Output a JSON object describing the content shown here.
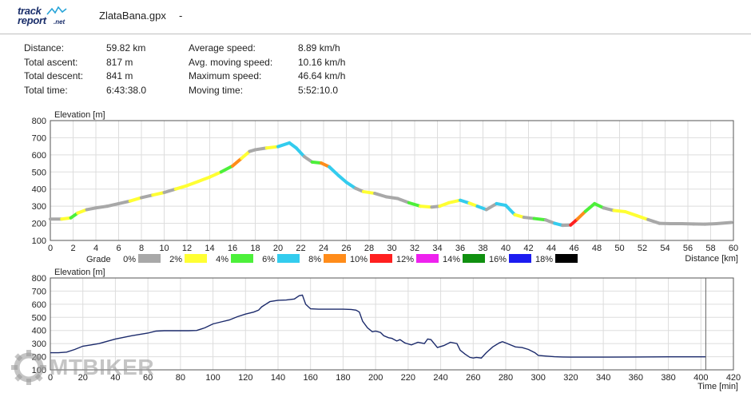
{
  "header": {
    "logo_line1": "track",
    "logo_line2": "report",
    "logo_suffix": ".net",
    "file_name": "ZlataBana.gpx",
    "dash": "-"
  },
  "stats": {
    "labels_left": [
      "Distance:",
      "Total ascent:",
      "Total descent:",
      "Total time:"
    ],
    "values_left": [
      "59.82 km",
      "817 m",
      "841 m",
      "6:43:38.0"
    ],
    "labels_right": [
      "Average speed:",
      "Avg. moving speed:",
      "Maximum speed:",
      "Moving time:"
    ],
    "values_right": [
      "8.89 km/h",
      "10.16 km/h",
      "46.64 km/h",
      "5:52:10.0"
    ]
  },
  "watermark": {
    "text": "MTBIKER"
  },
  "chart_data": [
    {
      "type": "line",
      "ylabel": "Elevation [m]",
      "xlabel": "Distance [km]",
      "xlim": [
        0,
        60
      ],
      "ylim": [
        100,
        800
      ],
      "xticks": [
        0,
        2,
        4,
        6,
        8,
        10,
        12,
        14,
        16,
        18,
        20,
        22,
        24,
        26,
        28,
        30,
        32,
        34,
        36,
        38,
        40,
        42,
        44,
        46,
        48,
        50,
        52,
        54,
        56,
        58,
        60
      ],
      "yticks": [
        100,
        200,
        300,
        400,
        500,
        600,
        700,
        800
      ],
      "grid": true,
      "legend": {
        "title": "Grade",
        "placement": "bottom",
        "items": [
          {
            "label": "0%",
            "color": "#a8a8a8"
          },
          {
            "label": "2%",
            "color": "#ffff33"
          },
          {
            "label": "4%",
            "color": "#4cf03a"
          },
          {
            "label": "6%",
            "color": "#33ccee"
          },
          {
            "label": "8%",
            "color": "#ff8c1a"
          },
          {
            "label": "10%",
            "color": "#ff2020"
          },
          {
            "label": "12%",
            "color": "#ee22ee"
          },
          {
            "label": "14%",
            "color": "#109010"
          },
          {
            "label": "16%",
            "color": "#1c1cf0"
          },
          {
            "label": "18%",
            "color": "#000000"
          }
        ]
      },
      "x": [
        0,
        1,
        1.8,
        2.4,
        3.2,
        4,
        5,
        6,
        7,
        8,
        9,
        10,
        11,
        12,
        13,
        14,
        15,
        16,
        16.8,
        17.5,
        18,
        19,
        20,
        21,
        21.6,
        22.3,
        23,
        23.8,
        24.5,
        25.3,
        26,
        26.8,
        27.5,
        28.5,
        29.5,
        30.5,
        31.5,
        32.5,
        33.5,
        34.2,
        35,
        36,
        36.8,
        37.5,
        38.3,
        39.2,
        40,
        40.8,
        41.6,
        42.5,
        43.5,
        44.3,
        45,
        45.7,
        46.3,
        47,
        47.8,
        48.6,
        49.5,
        50.5,
        51.5,
        52.5,
        53.5,
        54.5,
        55.5,
        56.5,
        57.5,
        58.5,
        59.82
      ],
      "y": [
        225,
        225,
        232,
        260,
        280,
        290,
        300,
        315,
        330,
        350,
        365,
        380,
        400,
        420,
        445,
        470,
        500,
        535,
        580,
        620,
        630,
        640,
        648,
        670,
        640,
        590,
        558,
        552,
        530,
        480,
        440,
        405,
        385,
        375,
        355,
        345,
        320,
        300,
        295,
        300,
        320,
        335,
        318,
        300,
        280,
        315,
        305,
        250,
        235,
        228,
        220,
        200,
        188,
        190,
        225,
        270,
        315,
        290,
        275,
        268,
        245,
        222,
        200,
        198,
        198,
        196,
        195,
        198,
        205
      ],
      "segment_grades": [
        "0%",
        "2%",
        "4%",
        "2%",
        "0%",
        "0%",
        "0%",
        "0%",
        "2%",
        "0%",
        "2%",
        "0%",
        "2%",
        "2%",
        "2%",
        "2%",
        "4%",
        "8%",
        "2%",
        "0%",
        "0%",
        "2%",
        "6%",
        "6%",
        "6%",
        "0%",
        "4%",
        "8%",
        "6%",
        "6%",
        "6%",
        "0%",
        "2%",
        "0%",
        "0%",
        "0%",
        "4%",
        "2%",
        "0%",
        "2%",
        "2%",
        "6%",
        "2%",
        "6%",
        "0%",
        "6%",
        "6%",
        "2%",
        "0%",
        "4%",
        "0%",
        "6%",
        "0%",
        "10%",
        "8%",
        "4%",
        "4%",
        "0%",
        "2%",
        "2%",
        "2%",
        "0%",
        "0%",
        "0%",
        "0%",
        "0%",
        "0%",
        "0%"
      ]
    },
    {
      "type": "line",
      "ylabel": "Elevation [m]",
      "xlabel": "Time [min]",
      "xlim": [
        0,
        420
      ],
      "ylim": [
        100,
        800
      ],
      "xticks": [
        0,
        20,
        40,
        60,
        80,
        100,
        120,
        140,
        160,
        180,
        200,
        220,
        240,
        260,
        280,
        300,
        320,
        340,
        360,
        380,
        400,
        420
      ],
      "yticks": [
        100,
        200,
        300,
        400,
        500,
        600,
        700,
        800
      ],
      "grid": true,
      "line_color": "#1b2a6b",
      "x": [
        0,
        5,
        10,
        15,
        20,
        25,
        30,
        40,
        50,
        60,
        65,
        70,
        75,
        80,
        85,
        90,
        95,
        100,
        105,
        110,
        115,
        120,
        125,
        128,
        130,
        135,
        140,
        145,
        150,
        153,
        155,
        157,
        160,
        165,
        170,
        175,
        180,
        185,
        188,
        190,
        192,
        195,
        198,
        200,
        203,
        205,
        208,
        210,
        213,
        215,
        218,
        222,
        226,
        230,
        232,
        234,
        236,
        238,
        242,
        246,
        250,
        252,
        255,
        258,
        260,
        262,
        265,
        268,
        272,
        276,
        278,
        282,
        286,
        290,
        294,
        298,
        300,
        305,
        310,
        315,
        320,
        340,
        360,
        380,
        395,
        403
      ],
      "y": [
        230,
        230,
        235,
        255,
        280,
        290,
        300,
        335,
        360,
        380,
        395,
        398,
        398,
        398,
        398,
        400,
        420,
        450,
        465,
        480,
        505,
        525,
        540,
        555,
        580,
        620,
        630,
        632,
        640,
        665,
        670,
        600,
        565,
        562,
        562,
        562,
        562,
        560,
        555,
        540,
        470,
        420,
        390,
        395,
        385,
        360,
        345,
        340,
        320,
        330,
        305,
        290,
        310,
        300,
        335,
        330,
        300,
        270,
        285,
        310,
        300,
        250,
        220,
        195,
        190,
        195,
        190,
        230,
        275,
        305,
        315,
        295,
        275,
        270,
        255,
        230,
        210,
        205,
        200,
        198,
        197,
        197,
        198,
        199,
        199,
        199
      ]
    }
  ]
}
